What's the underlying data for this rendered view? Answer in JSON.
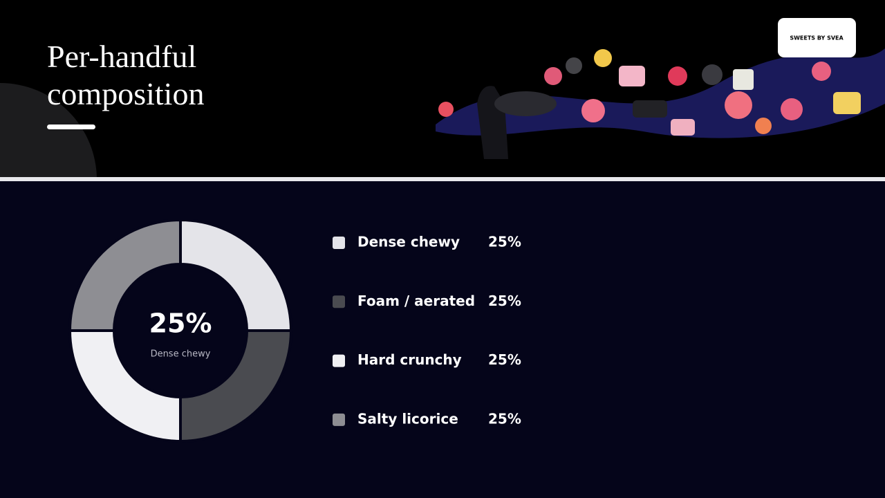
{
  "logo": "SWEETS BY SVEA",
  "chart_data": {
    "type": "pie",
    "donut": true,
    "title": "Per-handful composition",
    "categories": [
      "Dense chewy",
      "Foam / aerated",
      "Hard crunchy",
      "Salty licorice"
    ],
    "values": [
      25,
      25,
      25,
      25
    ],
    "value_labels": [
      "25%",
      "25%",
      "25%",
      "25%"
    ],
    "colors": [
      "#e4e4e9",
      "#4a4b50",
      "#f0f0f3",
      "#8e8e93"
    ],
    "highlight": 0
  }
}
